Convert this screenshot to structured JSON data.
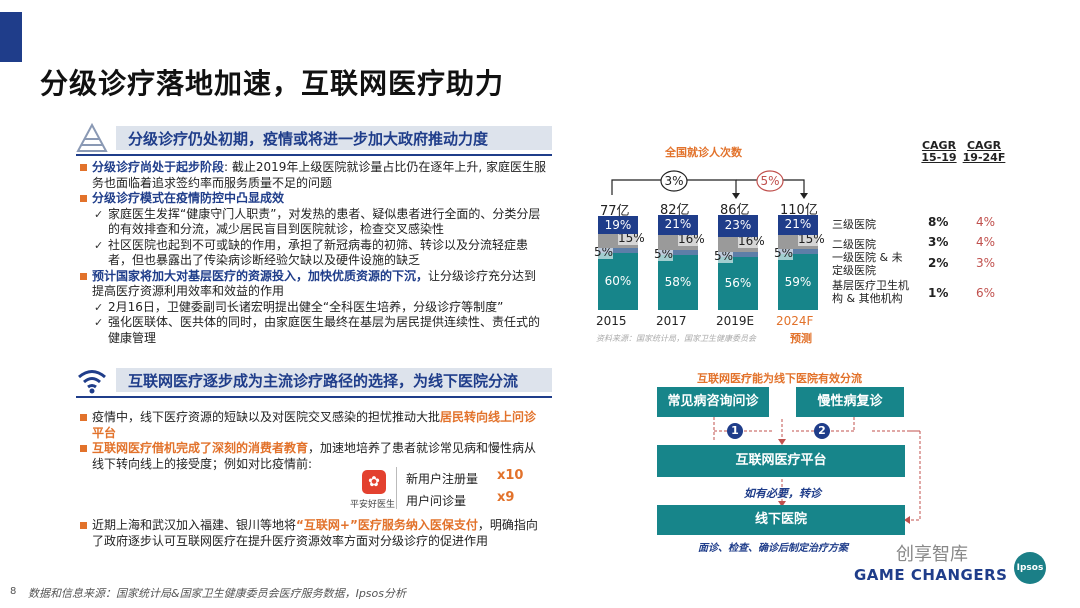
{
  "title": "分级诊疗落地加速，互联网医疗助力",
  "section1": {
    "heading": "分级诊疗仍处初期，疫情或将进一步加大政府推动力度",
    "bullet1_hl": "分级诊疗尚处于起步阶段",
    "bullet1_rest": ": 截止2019年上级医院就诊量占比仍在逐年上升, 家庭医生服务也面临着追求签约率而服务质量不足的问题",
    "bullet2_hl": "分级诊疗模式在疫情防控中凸显成效",
    "sub1": "家庭医生发挥“健康守门人职责”，对发热的患者、疑似患者进行全面的、分类分层的有效排查和分流，减少居民盲目到医院就诊，检查交叉感染性",
    "sub2": "社区医院也起到不可或缺的作用，承担了新冠病毒的初筛、转诊以及分流轻症患者，但也暴露出了传染病诊断经验欠缺以及硬件设施的缺乏",
    "bullet3_hl": "预计国家将加大对基层医疗的资源投入，加快优质资源的下沉，",
    "bullet3_rest": "让分级诊疗充分达到提高医疗资源利用效率和效益的作用",
    "sub3": "2月16日，卫健委副司长诸宏明提出健全“全科医生培养，分级诊疗等制度”",
    "sub4": "强化医联体、医共体的同时，由家庭医生最终在基层为居民提供连续性、责任式的健康管理"
  },
  "section2": {
    "heading": "互联网医疗逐步成为主流诊疗路径的选择，为线下医院分流",
    "bullet1_pre": "疫情中，线下医疗资源的短缺以及对医院交叉感染的担忧推动大批",
    "bullet1_hl": "居民转向线上问诊平台",
    "bullet2_hl": "互联网医疗借机完成了深刻的消费者教育",
    "bullet2_rest": "，加速地培养了患者就诊常见病和慢性病从线下转向线上的接受度；例如对比疫情前:",
    "app_name": "平安好医生",
    "stat1_label": "新用户注册量",
    "stat1_value": "x10",
    "stat2_label": "用户问诊量",
    "stat2_value": "x9",
    "bullet3_pre": "近期上海和武汉加入福建、银川等地将",
    "bullet3_hl": "“互联网+”医疗服务纳入医保支付",
    "bullet3_rest": "，明确指向了政府逐步认可互联网医疗在提升医疗资源效率方面对分级诊疗的促进作用"
  },
  "chart_data": {
    "type": "bar",
    "title": "全国就诊人次数",
    "categories": [
      "2015",
      "2017",
      "2019E",
      "2024F"
    ],
    "totals": [
      "77亿",
      "82亿",
      "86亿",
      "110亿"
    ],
    "forecast_label": "预测",
    "cagr_bubbles": [
      "3%",
      "5%"
    ],
    "series": [
      {
        "name": "基层医疗卫生机构 & 其他机构",
        "values": [
          60,
          58,
          56,
          59
        ],
        "color": "#17858a"
      },
      {
        "name": "一级医院 & 未定级医院",
        "values": [
          5,
          5,
          5,
          5
        ],
        "color": "#5d7ea8"
      },
      {
        "name": "二级医院",
        "values": [
          15,
          16,
          16,
          15
        ],
        "color": "#9a9a9a"
      },
      {
        "name": "三级医院",
        "values": [
          19,
          21,
          23,
          21
        ],
        "color": "#1f3d8a"
      }
    ],
    "cagr_headers": [
      "CAGR 15-19",
      "CAGR 19-24F"
    ],
    "cagr_rows": [
      {
        "label": "三级医院",
        "c1": "8%",
        "c2": "4%"
      },
      {
        "label": "二级医院",
        "c1": "3%",
        "c2": "4%"
      },
      {
        "label": "一级医院 & 未定级医院",
        "c1": "2%",
        "c2": "3%"
      },
      {
        "label": "基层医疗卫生机构 & 其他机构",
        "c1": "1%",
        "c2": "6%"
      }
    ],
    "source": "资料来源：国家统计局，国家卫生健康委员会"
  },
  "flow": {
    "title": "互联网医疗能为线下医院有效分流",
    "box1": "常见病咨询问诊",
    "box2": "慢性病复诊",
    "step1": "1",
    "step2": "2",
    "platform": "互联网医疗平台",
    "transfer": "如有必要，转诊",
    "offline": "线下医院",
    "offline_note": "面诊、检查、确诊后制定治疗方案"
  },
  "footer": {
    "page": "8",
    "source": "数据和信息来源：国家统计局&国家卫生健康委员会医疗服务数据，Ipsos分析",
    "brand": "GAME CHANGERS",
    "logo": "Ipsos",
    "watermark": "创享智库"
  }
}
